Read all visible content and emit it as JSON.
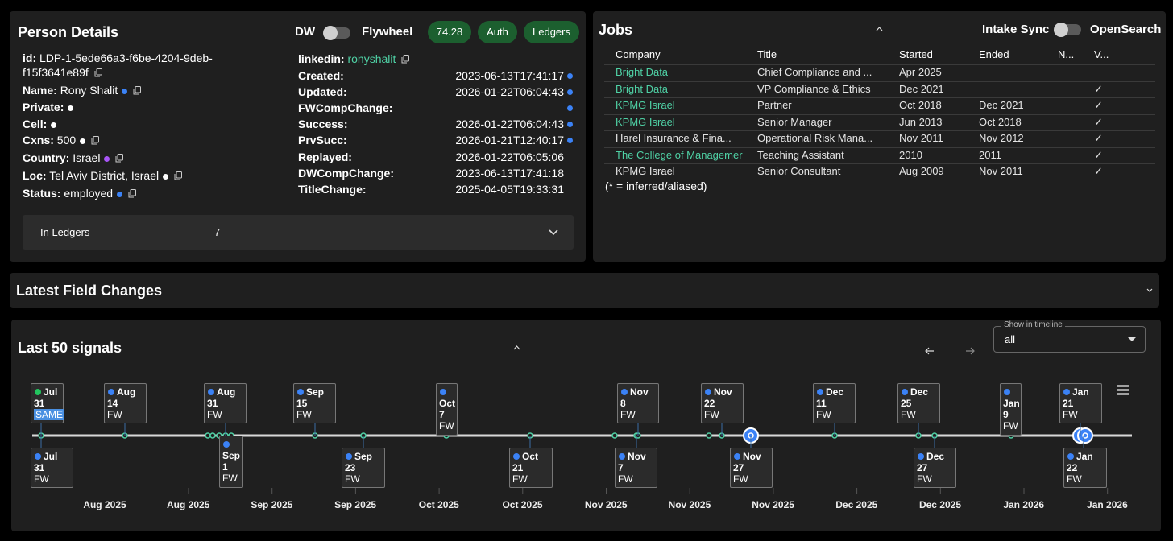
{
  "person": {
    "title": "Person Details",
    "toggle_left": "DW",
    "toggle_right": "Flywheel",
    "badges": [
      74.28,
      "Auth",
      "Ledgers"
    ],
    "fields_left": [
      {
        "label": "id:",
        "value": "LDP-1-5ede66a3-f6be-4204-9deb-f15f3641e89f",
        "dot": null
      },
      {
        "label": "Name:",
        "value": "Rony Shalit",
        "dot": "#3b82f6"
      },
      {
        "label": "Private:",
        "value": null,
        "dot": "#ffffff"
      },
      {
        "label": "Cell:",
        "value": null,
        "dot": "#ffffff"
      },
      {
        "label": "Cxns:",
        "value": 500,
        "dot": "#ffffff"
      },
      {
        "label": "Country:",
        "value": "Israel",
        "dot": "#a855f7"
      },
      {
        "label": "Loc:",
        "value": "Tel Aviv District, Israel",
        "dot": "#ffffff"
      },
      {
        "label": "Status:",
        "value": "employed",
        "dot": "#3b82f6"
      }
    ],
    "linkedin": {
      "label": "linkedin:",
      "value": "ronyshalit"
    },
    "fields_right": [
      {
        "label": "Created:",
        "value": "2023-06-13T17:41:17",
        "dot": "#3b82f6"
      },
      {
        "label": "Updated:",
        "value": "2026-01-22T06:04:43",
        "dot": "#3b82f6"
      },
      {
        "label": "FWCompChange:",
        "value": null,
        "dot": "#3b82f6"
      },
      {
        "label": "Success:",
        "value": "2026-01-22T06:04:43",
        "dot": "#3b82f6"
      },
      {
        "label": "PrvSucc:",
        "value": "2026-01-21T12:40:17",
        "dot": "#3b82f6"
      },
      {
        "label": "Replayed:",
        "value": "2026-01-22T06:05:06",
        "dot": null
      },
      {
        "label": "DWCompChange:",
        "value": "2023-06-13T17:41:18",
        "dot": null
      },
      {
        "label": "TitleChange:",
        "value": "2025-04-05T19:33:31",
        "dot": null
      }
    ],
    "ledgers": {
      "label": "In Ledgers",
      "count": 7
    }
  },
  "jobs": {
    "title": "Jobs",
    "toggle_left": "Intake Sync",
    "toggle_right": "OpenSearch",
    "headers": [
      "Company",
      "Title",
      "Started",
      "Ended",
      "N...",
      "V..."
    ],
    "rows": [
      {
        "company_color": "#4fd1a5",
        "cells": [
          "Bright Data",
          "Chief Compliance and ...",
          "Apr 2025",
          null,
          null,
          null
        ]
      },
      {
        "company_color": "#4fd1a5",
        "cells": [
          "Bright Data",
          "VP Compliance & Ethics",
          "Dec 2021",
          null,
          null,
          "✓"
        ]
      },
      {
        "company_color": "#4fd1a5",
        "cells": [
          "KPMG Israel",
          "Partner",
          "Oct 2018",
          "Dec 2021",
          null,
          "✓"
        ]
      },
      {
        "company_color": "#4fd1a5",
        "cells": [
          "KPMG Israel",
          "Senior Manager",
          "Jun 2013",
          "Oct 2018",
          null,
          "✓"
        ]
      },
      {
        "company_color": "#e5e5e5",
        "cells": [
          "Harel Insurance & Fina...",
          "Operational Risk Mana...",
          "Nov 2011",
          "Nov 2012",
          null,
          "✓"
        ]
      },
      {
        "company_color": "#4fd1a5",
        "cells": [
          "The College of Managemer",
          "Teaching Assistant",
          "2010",
          "2011",
          null,
          "✓"
        ]
      },
      {
        "company_color": "#e5e5e5",
        "cells": [
          "KPMG Israel",
          "Senior Consultant",
          "Aug 2009",
          "Nov 2011",
          null,
          "✓"
        ]
      }
    ],
    "footnote": "(* = inferred/aliased)"
  },
  "field_changes": {
    "title": "Latest Field Changes"
  },
  "signals": {
    "title": "Last 50 signals",
    "select_label": "Show in timeline",
    "select_value": "all",
    "events_top": [
      {
        "month": "Jul",
        "day": 31,
        "source": "SAME",
        "dot": "#22c55e"
      },
      {
        "month": "Aug",
        "day": 14,
        "source": "FW",
        "dot": "#3b82f6"
      },
      {
        "month": "Aug",
        "day": 31,
        "source": "FW",
        "dot": "#3b82f6"
      },
      {
        "month": "Sep",
        "day": 15,
        "source": "FW",
        "dot": "#3b82f6"
      },
      {
        "month": "Oct",
        "day": 7,
        "source": "FW",
        "dot": "#3b82f6"
      },
      {
        "month": "Nov",
        "day": 8,
        "source": "FW",
        "dot": "#3b82f6"
      },
      {
        "month": "Nov",
        "day": 22,
        "source": "FW",
        "dot": "#3b82f6"
      },
      {
        "month": "Dec",
        "day": 11,
        "source": "FW",
        "dot": "#3b82f6"
      },
      {
        "month": "Dec",
        "day": 25,
        "source": "FW",
        "dot": "#3b82f6"
      },
      {
        "month": "Jan",
        "day": 9,
        "source": "FW",
        "dot": "#3b82f6"
      },
      {
        "month": "Jan",
        "day": 21,
        "source": "FW",
        "dot": "#3b82f6"
      }
    ],
    "events_bottom": [
      {
        "month": "Jul",
        "day": 31,
        "source": "FW",
        "dot": "#3b82f6"
      },
      {
        "month": "Sep",
        "day": 1,
        "source": "FW",
        "dot": "#3b82f6"
      },
      {
        "month": "Sep",
        "day": 23,
        "source": "FW",
        "dot": "#3b82f6"
      },
      {
        "month": "Oct",
        "day": 21,
        "source": "FW",
        "dot": "#3b82f6"
      },
      {
        "month": "Nov",
        "day": 7,
        "source": "FW",
        "dot": "#3b82f6"
      },
      {
        "month": "Nov",
        "day": 27,
        "source": "FW",
        "dot": "#3b82f6"
      },
      {
        "month": "Dec",
        "day": 27,
        "source": "FW",
        "dot": "#3b82f6"
      },
      {
        "month": "Jan",
        "day": 22,
        "source": "FW",
        "dot": "#3b82f6"
      }
    ],
    "axis_labels": [
      "Aug 2025",
      "Aug 2025",
      "Sep 2025",
      "Sep 2025",
      "Oct 2025",
      "Oct 2025",
      "Nov 2025",
      "Nov 2025",
      "Nov 2025",
      "Dec 2025",
      "Dec 2025",
      "Jan 2026",
      "Jan 2026"
    ]
  }
}
